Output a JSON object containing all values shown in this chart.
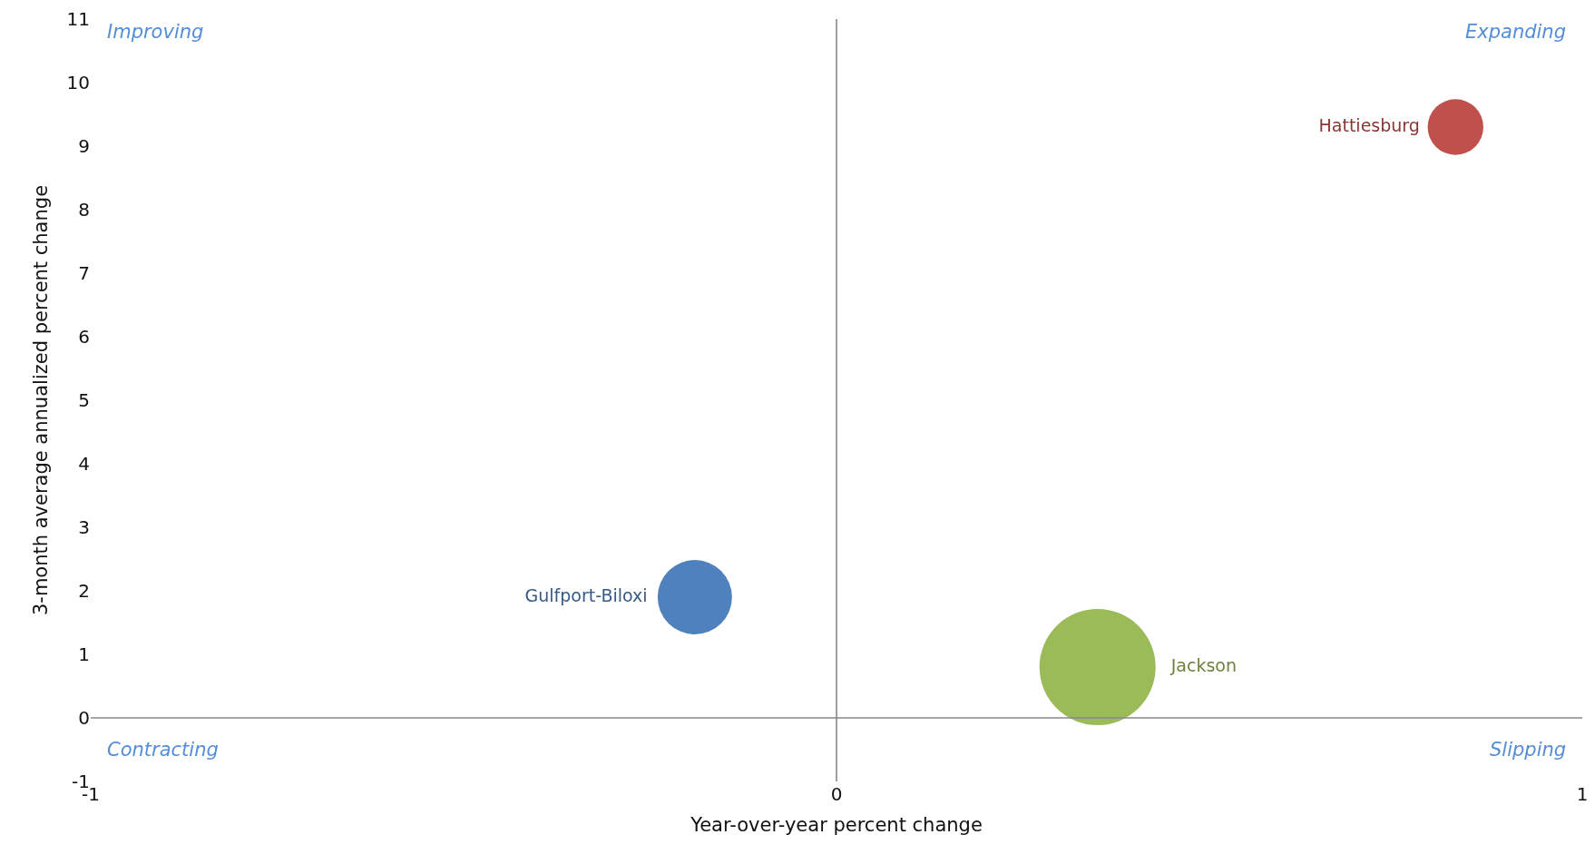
{
  "chart_data": {
    "type": "bubble",
    "xlabel": "Year-over-year percent change",
    "ylabel": "3-month average annualized percent change",
    "xlim": [
      -1,
      1
    ],
    "xticks": [
      -1,
      0,
      1
    ],
    "ylim": [
      -1,
      11
    ],
    "yticks": [
      -1,
      0,
      1,
      2,
      3,
      4,
      5,
      6,
      7,
      8,
      9,
      10,
      11
    ],
    "series": [
      {
        "name": "Gulfport-Biloxi",
        "color": "#4f81bd",
        "x": [
          -0.19
        ],
        "values": [
          1.9
        ],
        "sizes": [
          0.41
        ]
      },
      {
        "name": "Jackson",
        "color": "#9bbb59",
        "x": [
          0.35
        ],
        "values": [
          0.8
        ],
        "sizes": [
          1
        ]
      },
      {
        "name": "Hattiesburg",
        "color": "#c0504d",
        "x": [
          0.83
        ],
        "values": [
          9.3
        ],
        "sizes": [
          0.23
        ]
      }
    ],
    "annotations": [
      "Improving",
      "Expanding",
      "Contracting",
      "Slipping"
    ],
    "ref_lines": [
      {
        "axis": "x",
        "value": 0,
        "color": "#7f7f7f"
      },
      {
        "axis": "y",
        "value": 0,
        "color": "#888888"
      }
    ],
    "legend": false
  }
}
